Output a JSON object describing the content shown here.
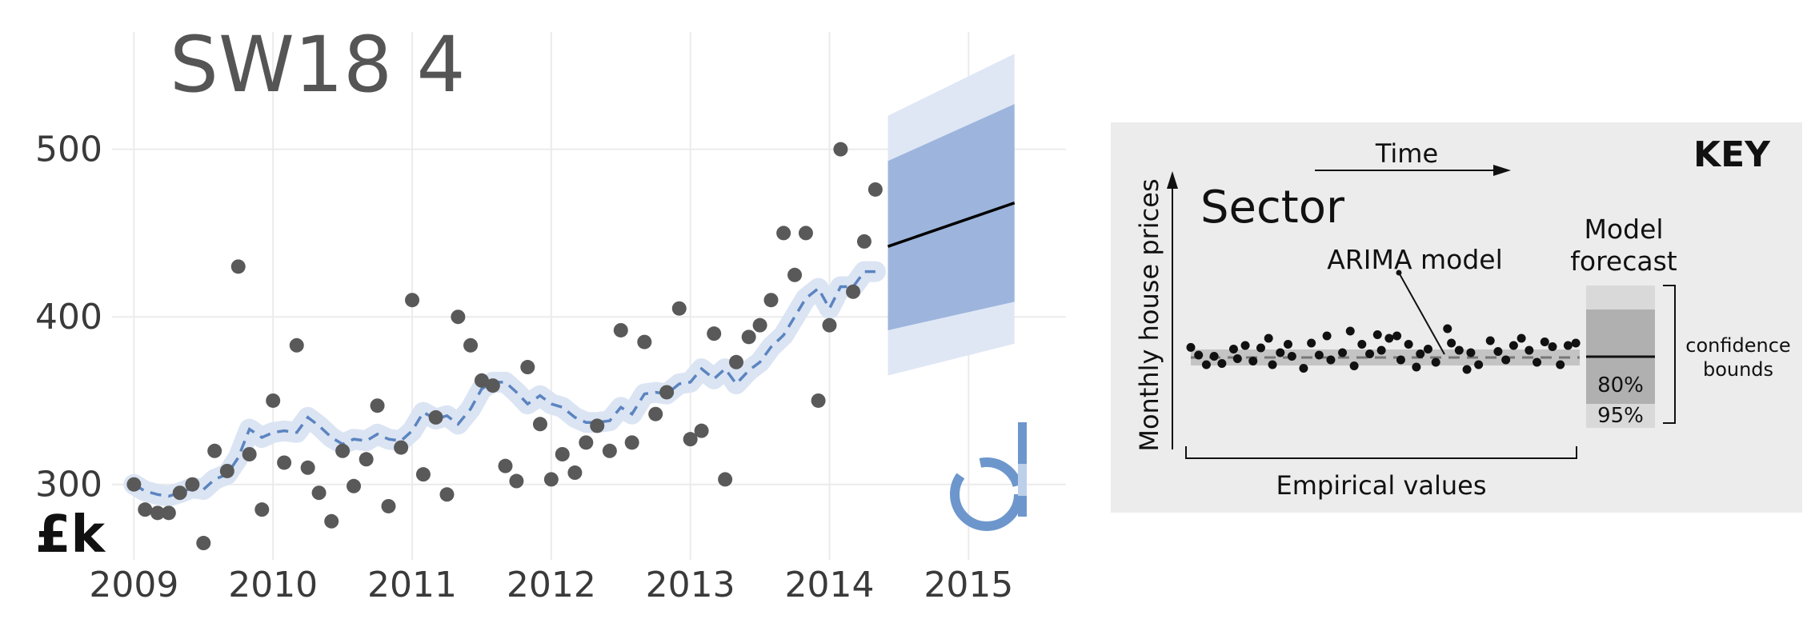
{
  "chart_data": {
    "type": "scatter",
    "title": "SW18 4",
    "unit_label": "£k",
    "xlim": [
      2008.9,
      2015.7
    ],
    "ylim": [
      255,
      570
    ],
    "x_ticks": [
      2009,
      2010,
      2011,
      2012,
      2013,
      2014,
      2015
    ],
    "y_ticks": [
      300,
      400,
      500
    ],
    "grid": true,
    "colors": {
      "points": "#595959",
      "model_line": "#5b84c0",
      "model_band": "#dbe4f3",
      "band_95": "#dfe7f5",
      "band_80": "#9db5dc",
      "forecast_line": "#000000",
      "gridline": "#ebebeb",
      "logo": "#6d97cc"
    },
    "empirical": [
      [
        2009.0,
        300
      ],
      [
        2009.08,
        285
      ],
      [
        2009.17,
        283
      ],
      [
        2009.25,
        283
      ],
      [
        2009.33,
        295
      ],
      [
        2009.42,
        300
      ],
      [
        2009.5,
        265
      ],
      [
        2009.58,
        320
      ],
      [
        2009.67,
        308
      ],
      [
        2009.75,
        430
      ],
      [
        2009.83,
        318
      ],
      [
        2009.92,
        285
      ],
      [
        2010.0,
        350
      ],
      [
        2010.08,
        313
      ],
      [
        2010.17,
        383
      ],
      [
        2010.25,
        310
      ],
      [
        2010.33,
        295
      ],
      [
        2010.42,
        278
      ],
      [
        2010.5,
        320
      ],
      [
        2010.58,
        299
      ],
      [
        2010.67,
        315
      ],
      [
        2010.75,
        347
      ],
      [
        2010.83,
        287
      ],
      [
        2010.92,
        322
      ],
      [
        2011.0,
        410
      ],
      [
        2011.08,
        306
      ],
      [
        2011.17,
        340
      ],
      [
        2011.25,
        294
      ],
      [
        2011.33,
        400
      ],
      [
        2011.42,
        383
      ],
      [
        2011.5,
        362
      ],
      [
        2011.58,
        359
      ],
      [
        2011.67,
        311
      ],
      [
        2011.75,
        302
      ],
      [
        2011.83,
        370
      ],
      [
        2011.92,
        336
      ],
      [
        2012.0,
        303
      ],
      [
        2012.08,
        318
      ],
      [
        2012.17,
        307
      ],
      [
        2012.25,
        325
      ],
      [
        2012.33,
        335
      ],
      [
        2012.42,
        320
      ],
      [
        2012.5,
        392
      ],
      [
        2012.58,
        325
      ],
      [
        2012.67,
        385
      ],
      [
        2012.75,
        342
      ],
      [
        2012.83,
        355
      ],
      [
        2012.92,
        405
      ],
      [
        2013.0,
        327
      ],
      [
        2013.08,
        332
      ],
      [
        2013.17,
        390
      ],
      [
        2013.25,
        303
      ],
      [
        2013.33,
        373
      ],
      [
        2013.42,
        388
      ],
      [
        2013.5,
        395
      ],
      [
        2013.58,
        410
      ],
      [
        2013.67,
        450
      ],
      [
        2013.75,
        425
      ],
      [
        2013.83,
        450
      ],
      [
        2013.92,
        350
      ],
      [
        2014.0,
        395
      ],
      [
        2014.08,
        500
      ],
      [
        2014.17,
        415
      ],
      [
        2014.25,
        445
      ],
      [
        2014.33,
        476
      ]
    ],
    "arima_model": [
      [
        2009.0,
        300
      ],
      [
        2009.08,
        296
      ],
      [
        2009.17,
        294
      ],
      [
        2009.25,
        293
      ],
      [
        2009.33,
        295
      ],
      [
        2009.42,
        298
      ],
      [
        2009.5,
        297
      ],
      [
        2009.58,
        303
      ],
      [
        2009.67,
        306
      ],
      [
        2009.75,
        316
      ],
      [
        2009.83,
        333
      ],
      [
        2009.92,
        328
      ],
      [
        2010.0,
        331
      ],
      [
        2010.08,
        332
      ],
      [
        2010.17,
        331
      ],
      [
        2010.25,
        340
      ],
      [
        2010.33,
        335
      ],
      [
        2010.42,
        328
      ],
      [
        2010.5,
        324
      ],
      [
        2010.58,
        327
      ],
      [
        2010.67,
        326
      ],
      [
        2010.75,
        330
      ],
      [
        2010.83,
        327
      ],
      [
        2010.92,
        326
      ],
      [
        2011.0,
        332
      ],
      [
        2011.08,
        343
      ],
      [
        2011.17,
        339
      ],
      [
        2011.25,
        341
      ],
      [
        2011.33,
        336
      ],
      [
        2011.42,
        345
      ],
      [
        2011.5,
        357
      ],
      [
        2011.58,
        361
      ],
      [
        2011.67,
        361
      ],
      [
        2011.75,
        355
      ],
      [
        2011.83,
        348
      ],
      [
        2011.92,
        353
      ],
      [
        2012.0,
        348
      ],
      [
        2012.08,
        346
      ],
      [
        2012.17,
        340
      ],
      [
        2012.25,
        337
      ],
      [
        2012.33,
        337
      ],
      [
        2012.42,
        338
      ],
      [
        2012.5,
        346
      ],
      [
        2012.58,
        342
      ],
      [
        2012.67,
        354
      ],
      [
        2012.75,
        355
      ],
      [
        2012.83,
        354
      ],
      [
        2012.92,
        360
      ],
      [
        2013.0,
        361
      ],
      [
        2013.08,
        369
      ],
      [
        2013.17,
        363
      ],
      [
        2013.25,
        369
      ],
      [
        2013.33,
        360
      ],
      [
        2013.42,
        368
      ],
      [
        2013.5,
        373
      ],
      [
        2013.58,
        382
      ],
      [
        2013.67,
        389
      ],
      [
        2013.75,
        400
      ],
      [
        2013.83,
        411
      ],
      [
        2013.92,
        417
      ],
      [
        2014.0,
        405
      ],
      [
        2014.08,
        418
      ],
      [
        2014.17,
        418
      ],
      [
        2014.25,
        427
      ],
      [
        2014.33,
        427
      ]
    ],
    "forecast": {
      "start": {
        "x": 2014.42,
        "mean": 442,
        "lower_80": 392,
        "upper_80": 493,
        "lower_95": 365,
        "upper_95": 520
      },
      "end": {
        "x": 2015.33,
        "mean": 468,
        "lower_80": 409,
        "upper_80": 527,
        "lower_95": 384,
        "upper_95": 557
      }
    }
  },
  "key": {
    "title": "KEY",
    "time_label": "Time",
    "y_axis_label": "Monthly house prices",
    "sector_label": "Sector",
    "arima_label": "ARIMA model",
    "forecast_label_line1": "Model",
    "forecast_label_line2": "forecast",
    "conf_label_line1": "confidence",
    "conf_label_line2": "bounds",
    "pct_80": "80%",
    "pct_95": "95%",
    "empirical_label": "Empirical values",
    "colors": {
      "panel": "#ececec",
      "axis_text": "#999999",
      "sector_text": "#555555",
      "model_band": "#c4c4c4",
      "dashed": "#777777",
      "band_95": "#d9d9d9",
      "band_80": "#b0b0b0"
    },
    "example_points": [
      [
        0.0,
        0.42
      ],
      [
        0.02,
        0.1
      ],
      [
        0.04,
        -0.3
      ],
      [
        0.06,
        0.05
      ],
      [
        0.08,
        -0.25
      ],
      [
        0.11,
        0.35
      ],
      [
        0.12,
        -0.05
      ],
      [
        0.14,
        0.5
      ],
      [
        0.16,
        -0.15
      ],
      [
        0.18,
        0.4
      ],
      [
        0.2,
        0.8
      ],
      [
        0.21,
        -0.3
      ],
      [
        0.23,
        0.2
      ],
      [
        0.25,
        0.55
      ],
      [
        0.26,
        0.05
      ],
      [
        0.29,
        -0.45
      ],
      [
        0.31,
        0.6
      ],
      [
        0.33,
        0.1
      ],
      [
        0.35,
        0.9
      ],
      [
        0.36,
        -0.1
      ],
      [
        0.39,
        0.2
      ],
      [
        0.41,
        1.1
      ],
      [
        0.42,
        -0.35
      ],
      [
        0.44,
        0.55
      ],
      [
        0.46,
        0.15
      ],
      [
        0.48,
        0.95
      ],
      [
        0.49,
        0.3
      ],
      [
        0.51,
        0.8
      ],
      [
        0.53,
        0.9
      ],
      [
        0.54,
        -0.1
      ],
      [
        0.56,
        0.55
      ],
      [
        0.58,
        -0.4
      ],
      [
        0.59,
        0.15
      ],
      [
        0.61,
        0.35
      ],
      [
        0.63,
        -0.2
      ],
      [
        0.66,
        1.2
      ],
      [
        0.67,
        0.6
      ],
      [
        0.69,
        0.3
      ],
      [
        0.71,
        -0.5
      ],
      [
        0.72,
        0.2
      ],
      [
        0.74,
        -0.3
      ],
      [
        0.77,
        0.7
      ],
      [
        0.79,
        0.25
      ],
      [
        0.81,
        -0.1
      ],
      [
        0.83,
        0.5
      ],
      [
        0.85,
        0.8
      ],
      [
        0.87,
        0.3
      ],
      [
        0.89,
        -0.2
      ],
      [
        0.91,
        0.65
      ],
      [
        0.93,
        0.45
      ],
      [
        0.95,
        -0.3
      ],
      [
        0.97,
        0.5
      ],
      [
        0.99,
        0.6
      ]
    ]
  }
}
